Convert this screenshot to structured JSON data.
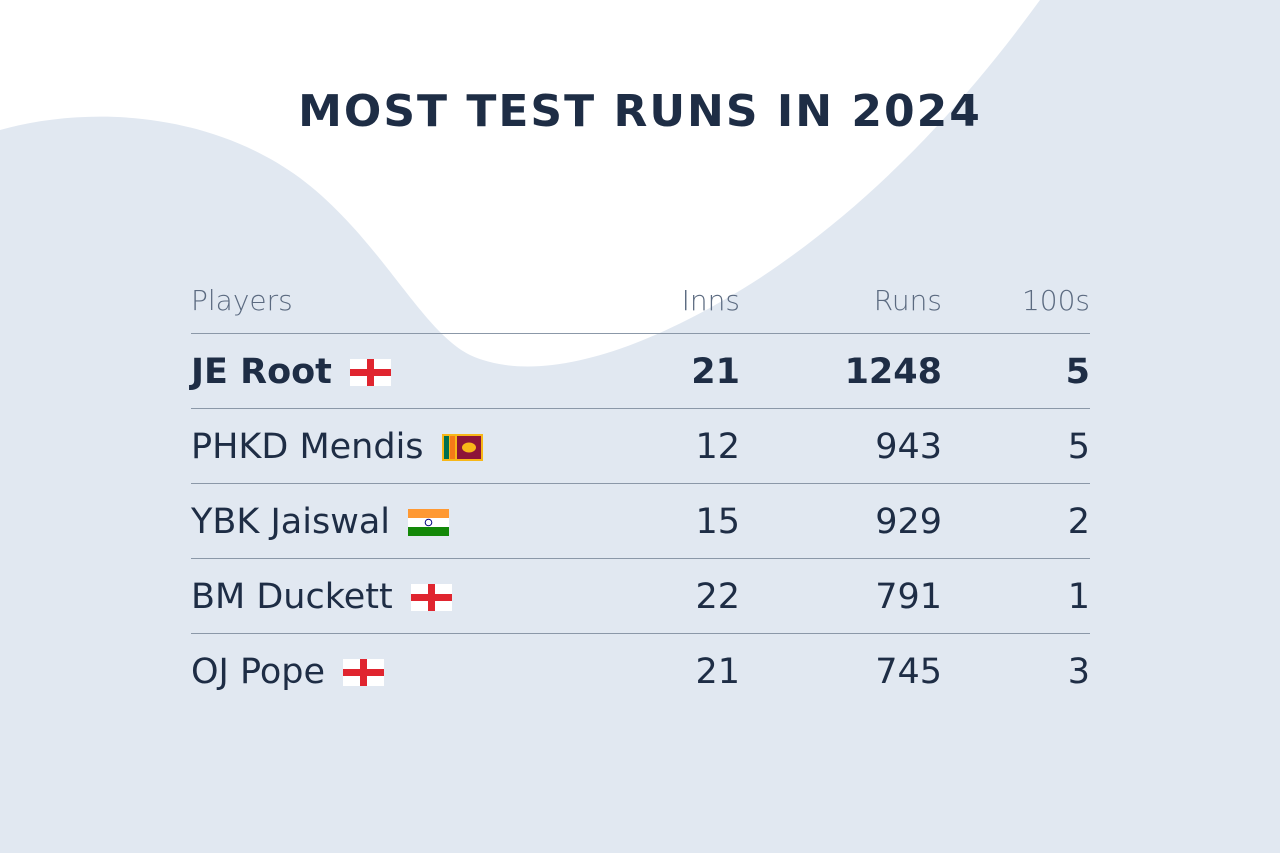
{
  "title": "MOST TEST RUNS IN 2024",
  "colors": {
    "text": "#1e2d45",
    "header_text": "#5b6a80",
    "background_shape": "#e1e8f1",
    "divider": "#8b98a8"
  },
  "chart_data": {
    "type": "table",
    "title": "MOST TEST RUNS IN 2024",
    "columns": [
      "Players",
      "Inns",
      "Runs",
      "100s"
    ],
    "rows": [
      {
        "player": "JE Root",
        "flag": "england-flag-icon",
        "inns": "21",
        "runs": "1248",
        "hundreds": "5",
        "highlight": true
      },
      {
        "player": "PHKD Mendis",
        "flag": "sri-lanka-flag-icon",
        "inns": "12",
        "runs": "943",
        "hundreds": "5",
        "highlight": false
      },
      {
        "player": "YBK Jaiswal",
        "flag": "india-flag-icon",
        "inns": "15",
        "runs": "929",
        "hundreds": "2",
        "highlight": false
      },
      {
        "player": "BM Duckett",
        "flag": "england-flag-icon",
        "inns": "22",
        "runs": "791",
        "hundreds": "1",
        "highlight": false
      },
      {
        "player": "OJ Pope",
        "flag": "england-flag-icon",
        "inns": "21",
        "runs": "745",
        "hundreds": "3",
        "highlight": false
      }
    ]
  }
}
